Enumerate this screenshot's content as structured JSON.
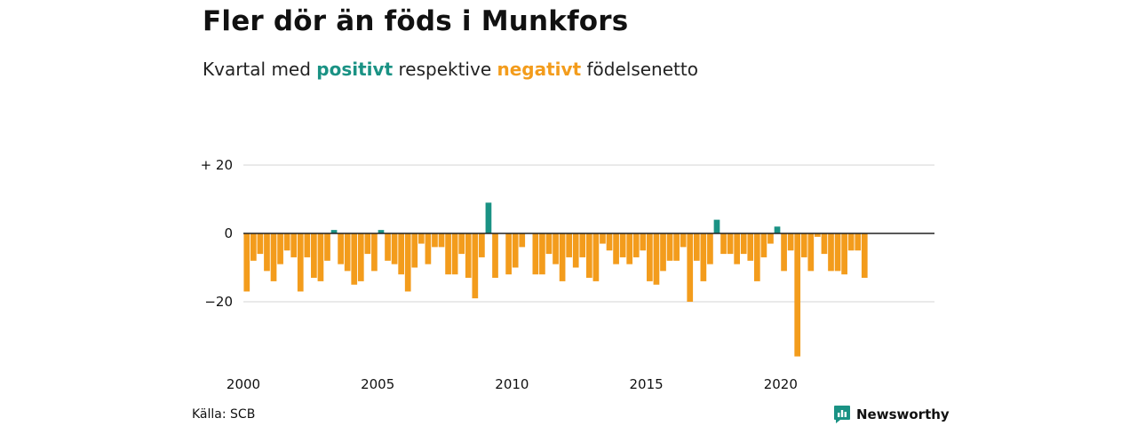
{
  "header": {
    "title": "Fler dör än föds i Munkfors",
    "subtitle_pre": "Kvartal med",
    "subtitle_pos": "positivt",
    "subtitle_mid": "respektive",
    "subtitle_neg": "negativt",
    "subtitle_post": "födelsenetto"
  },
  "footer": {
    "source": "Källa: SCB",
    "brand": "Newsworthy"
  },
  "colors": {
    "positive": "#1a9284",
    "negative": "#f39c1c",
    "grid": "#dddddd",
    "zero_line": "#222222"
  },
  "chart_data": {
    "type": "bar",
    "x_start": 2000,
    "periods_per_year": 4,
    "y_ticks": [
      20,
      0,
      -20
    ],
    "y_tick_labels": [
      "+ 20",
      "0",
      "−20"
    ],
    "x_ticks": [
      2000,
      2005,
      2010,
      2015,
      2020
    ],
    "ylim": [
      -36,
      20
    ],
    "grid": true,
    "values": [
      -17,
      -8,
      -6,
      -11,
      -14,
      -9,
      -5,
      -7,
      -17,
      -7,
      -13,
      -14,
      -8,
      1,
      -9,
      -11,
      -15,
      -14,
      -6,
      -11,
      1,
      -8,
      -9,
      -12,
      -17,
      -10,
      -3,
      -9,
      -4,
      -4,
      -12,
      -12,
      -6,
      -13,
      -19,
      -7,
      9,
      -13,
      0,
      -12,
      -10,
      -4,
      0,
      -12,
      -12,
      -6,
      -9,
      -14,
      -7,
      -10,
      -7,
      -13,
      -14,
      -3,
      -5,
      -9,
      -7,
      -9,
      -7,
      -5,
      -14,
      -15,
      -11,
      -8,
      -8,
      -4,
      -20,
      -8,
      -14,
      -9,
      4,
      -6,
      -6,
      -9,
      -6,
      -8,
      -14,
      -7,
      -3,
      2,
      -11,
      -5,
      -36,
      -7,
      -11,
      -1,
      -6,
      -11,
      -11,
      -12,
      -5,
      -5,
      -13
    ]
  }
}
